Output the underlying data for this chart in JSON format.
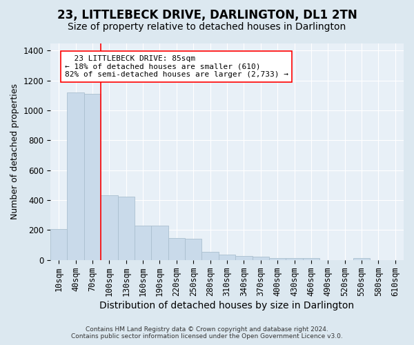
{
  "title": "23, LITTLEBECK DRIVE, DARLINGTON, DL1 2TN",
  "subtitle": "Size of property relative to detached houses in Darlington",
  "xlabel": "Distribution of detached houses by size in Darlington",
  "ylabel": "Number of detached properties",
  "footer_line1": "Contains HM Land Registry data © Crown copyright and database right 2024.",
  "footer_line2": "Contains public sector information licensed under the Open Government Licence v3.0.",
  "annotation_line1": "  23 LITTLEBECK DRIVE: 85sqm",
  "annotation_line2": "← 18% of detached houses are smaller (610)",
  "annotation_line3": "82% of semi-detached houses are larger (2,733) →",
  "bar_values": [
    205,
    1120,
    1110,
    430,
    425,
    230,
    230,
    145,
    140,
    55,
    35,
    25,
    20,
    10,
    10,
    10,
    0,
    0,
    10,
    0,
    0
  ],
  "bar_labels": [
    "10sqm",
    "40sqm",
    "70sqm",
    "100sqm",
    "130sqm",
    "160sqm",
    "190sqm",
    "220sqm",
    "250sqm",
    "280sqm",
    "310sqm",
    "340sqm",
    "370sqm",
    "400sqm",
    "430sqm",
    "460sqm",
    "490sqm",
    "520sqm",
    "550sqm",
    "580sqm",
    "610sqm"
  ],
  "bar_color": "#c9daea",
  "bar_edge_color": "#aabfcf",
  "vline_x": 2.5,
  "vline_color": "red",
  "annotation_box_color": "white",
  "annotation_box_edge": "red",
  "ylim": [
    0,
    1450
  ],
  "yticks": [
    0,
    200,
    400,
    600,
    800,
    1000,
    1200,
    1400
  ],
  "bg_color": "#dce8f0",
  "plot_bg_color": "#e8f0f7",
  "title_fontsize": 12,
  "subtitle_fontsize": 10,
  "label_fontsize": 9,
  "tick_fontsize": 8.5,
  "footer_fontsize": 6.5
}
